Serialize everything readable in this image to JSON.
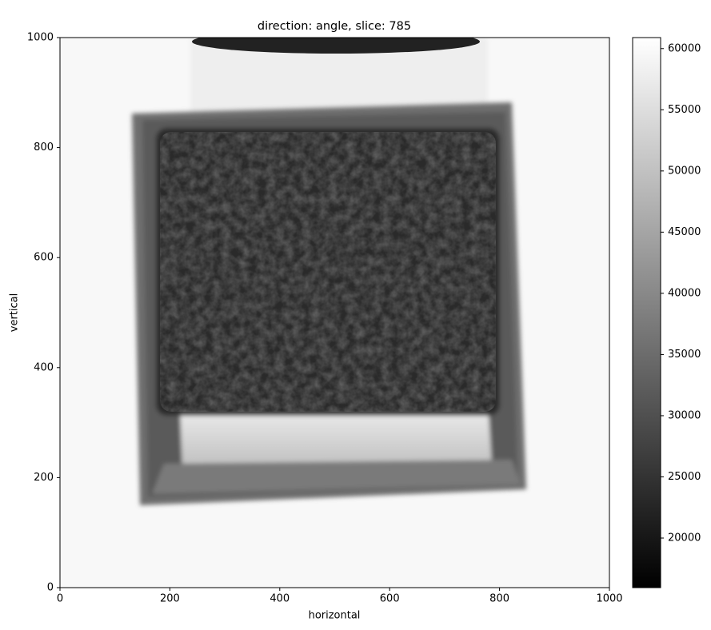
{
  "chart_data": {
    "type": "image",
    "title": "direction: angle, slice: 785",
    "x_label": "horizontal",
    "y_label": "vertical",
    "xlim": [
      0,
      1000
    ],
    "xticks": [
      0,
      200,
      400,
      600,
      800,
      1000
    ],
    "ylim": [
      0,
      1000
    ],
    "yticks": [
      0,
      200,
      400,
      600,
      800,
      1000
    ],
    "colormap": [
      "#000000",
      "#ffffff"
    ],
    "clim": [
      15950,
      60900
    ],
    "cticks": [
      20000,
      25000,
      30000,
      35000,
      40000,
      45000,
      50000,
      55000,
      60000
    ]
  }
}
